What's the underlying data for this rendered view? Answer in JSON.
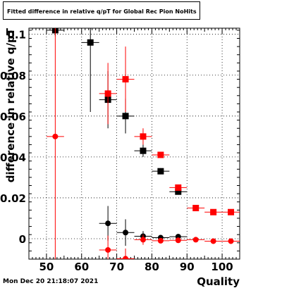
{
  "chart_data": {
    "type": "scatter",
    "title": "Fitted difference in relative q/pT for Global Rec Pion NoHits",
    "xlabel": "Quality",
    "ylabel": "difference in relative q/pT",
    "xlim": [
      45,
      105
    ],
    "ylim": [
      -0.01,
      0.103
    ],
    "x_ticks": [
      50,
      60,
      70,
      80,
      90,
      100
    ],
    "y_ticks": [
      0,
      0.02,
      0.04,
      0.06,
      0.08,
      0.1
    ],
    "y_tick_labels": [
      "0",
      "0.02",
      "0.04",
      "0.06",
      "0.08",
      "0.1"
    ],
    "grid": true,
    "legend": false,
    "series": [
      {
        "marker": "square",
        "color": "#000000",
        "points": [
          {
            "x": 52.5,
            "y": 0.102,
            "yerr": 0.003
          },
          {
            "x": 62.5,
            "y": 0.096,
            "yerr": 0.034
          },
          {
            "x": 67.5,
            "y": 0.068,
            "yerr": 0.014
          },
          {
            "x": 72.5,
            "y": 0.06,
            "yerr": 0.0085
          },
          {
            "x": 77.5,
            "y": 0.043,
            "yerr": 0.003
          },
          {
            "x": 82.5,
            "y": 0.033,
            "yerr": 0.0015
          },
          {
            "x": 87.5,
            "y": 0.023,
            "yerr": 0.001
          }
        ]
      },
      {
        "marker": "square",
        "color": "#ff0000",
        "points": [
          {
            "x": 67.5,
            "y": 0.071,
            "yerr": 0.015
          },
          {
            "x": 72.5,
            "y": 0.078,
            "yerr": 0.016
          },
          {
            "x": 77.5,
            "y": 0.05,
            "yerr": 0.004
          },
          {
            "x": 82.5,
            "y": 0.041,
            "yerr": 0.0015
          },
          {
            "x": 87.5,
            "y": 0.025,
            "yerr": 0.001
          },
          {
            "x": 92.5,
            "y": 0.015,
            "yerr": 0.0008
          },
          {
            "x": 97.5,
            "y": 0.013,
            "yerr": 0.0005
          },
          {
            "x": 102.5,
            "y": 0.013,
            "yerr": 0.0005
          }
        ]
      },
      {
        "marker": "circle",
        "color": "#000000",
        "points": [
          {
            "x": 67.5,
            "y": 0.0075,
            "yerr": 0.0085
          },
          {
            "x": 72.5,
            "y": 0.003,
            "yerr": 0.0065
          },
          {
            "x": 77.5,
            "y": 0.0012,
            "yerr": 0.0025
          },
          {
            "x": 82.5,
            "y": 0.0005,
            "yerr": 0.0012
          },
          {
            "x": 87.5,
            "y": 0.001,
            "yerr": 0.0008
          }
        ]
      },
      {
        "marker": "circle",
        "color": "#ff0000",
        "points": [
          {
            "x": 52.5,
            "y": 0.05,
            "yerr": 0.07
          },
          {
            "x": 67.5,
            "y": -0.0055,
            "yerr": 0.007
          },
          {
            "x": 72.5,
            "y": -0.0098,
            "yerr": 0.005
          },
          {
            "x": 77.5,
            "y": -0.0005,
            "yerr": 0.0025
          },
          {
            "x": 82.5,
            "y": -0.001,
            "yerr": 0.0012
          },
          {
            "x": 87.5,
            "y": -0.0008,
            "yerr": 0.0008
          },
          {
            "x": 92.5,
            "y": -0.0005,
            "yerr": 0.0005
          },
          {
            "x": 97.5,
            "y": -0.0012,
            "yerr": 0.0005
          },
          {
            "x": 102.5,
            "y": -0.0012,
            "yerr": 0.0005
          }
        ]
      }
    ]
  },
  "footer": {
    "timestamp": "Mon Dec 20 21:18:07 2021"
  }
}
